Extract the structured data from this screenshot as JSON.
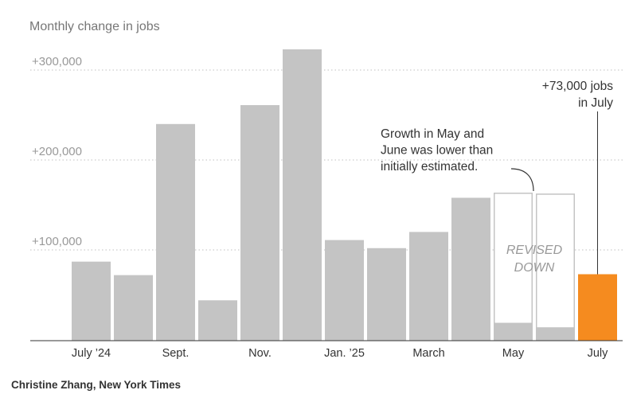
{
  "chart_data": {
    "type": "bar",
    "title": "Monthly change in jobs",
    "y_ticks": [
      {
        "value": 100000,
        "label": "+100,000"
      },
      {
        "value": 200000,
        "label": "+200,000"
      },
      {
        "value": 300000,
        "label": "+300,000"
      }
    ],
    "ylim": [
      0,
      322000
    ],
    "grid": "horizontal dotted",
    "categories": [
      "Jul 2024",
      "Aug 2024",
      "Sep 2024",
      "Oct 2024",
      "Nov 2024",
      "Dec 2024",
      "Jan 2025",
      "Feb 2025",
      "Mar 2025",
      "Apr 2025",
      "May 2025",
      "Jun 2025",
      "Jul 2025"
    ],
    "x_tick_labels": [
      {
        "index": 0,
        "label": "July ’24"
      },
      {
        "index": 2,
        "label": "Sept."
      },
      {
        "index": 4,
        "label": "Nov."
      },
      {
        "index": 6,
        "label": "Jan. ’25"
      },
      {
        "index": 8,
        "label": "March"
      },
      {
        "index": 10,
        "label": "May"
      },
      {
        "index": 12,
        "label": "July"
      }
    ],
    "values": [
      87000,
      72000,
      240000,
      44000,
      261000,
      323000,
      111000,
      102000,
      120000,
      158000,
      19000,
      14000,
      73000
    ],
    "initial_estimates": [
      null,
      null,
      null,
      null,
      null,
      null,
      null,
      null,
      null,
      null,
      163000,
      162000,
      null
    ],
    "colors": {
      "bar": "#c4c4c4",
      "highlight": "#f58b1f",
      "revised_outline": "#c4c4c4",
      "grid": "#cccccc",
      "text": "#333333",
      "muted": "#999999"
    },
    "annotations": {
      "revised_label": [
        "REVISED",
        "DOWN"
      ],
      "revision_note": [
        "Growth in May and",
        "June was lower than",
        "initially estimated."
      ],
      "july_note": [
        "+73,000 jobs",
        "in July"
      ]
    }
  },
  "credit": "Christine Zhang, New York Times"
}
